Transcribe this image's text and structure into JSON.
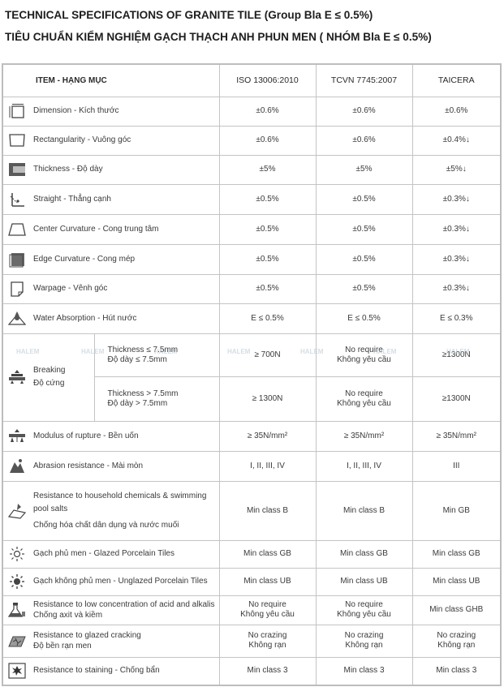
{
  "title_en": "TECHNICAL SPECIFICATIONS OF GRANITE TILE (Group Bla E ≤ 0.5%)",
  "title_vi": "TIÊU CHUẨN KIỂM NGHIỆM GẠCH THẠCH ANH PHUN MEN ( NHÓM Bla E ≤ 0.5%)",
  "header": {
    "item": "ITEM - HẠNG MỤC",
    "c1": "ISO 13006:2010",
    "c2": "TCVN  7745:2007",
    "c3": "TAICERA"
  },
  "rows": {
    "dimension": {
      "label": "Dimension - Kích thước",
      "icon": "dimension-icon",
      "v1": "±0.6%",
      "v2": "±0.6%",
      "v3": "±0.6%"
    },
    "rectangularity": {
      "label": "Rectangularity - Vuông góc",
      "icon": "rectangularity-icon",
      "v1": "±0.6%",
      "v2": "±0.6%",
      "v3": "±0.4%↓"
    },
    "thickness": {
      "label": "Thickness - Độ dày",
      "icon": "thickness-icon",
      "v1": "±5%",
      "v2": "±5%",
      "v3": "±5%↓"
    },
    "straight": {
      "label": "Straight - Thẳng cạnh",
      "icon": "straight-edge-icon",
      "v1": "±0.5%",
      "v2": "±0.5%",
      "v3": "±0.3%↓"
    },
    "center_curvature": {
      "label": "Center Curvature - Cong trung tâm",
      "icon": "center-curvature-icon",
      "v1": "±0.5%",
      "v2": "±0.5%",
      "v3": "±0.3%↓"
    },
    "edge_curvature": {
      "label": "Edge Curvature - Cong mép",
      "icon": "edge-curvature-icon",
      "v1": "±0.5%",
      "v2": "±0.5%",
      "v3": "±0.3%↓"
    },
    "warpage": {
      "label": "Warpage - Vênh góc",
      "icon": "warpage-icon",
      "v1": "±0.5%",
      "v2": "±0.5%",
      "v3": "±0.3%↓"
    },
    "water_absorption": {
      "label": "Water Absorption  - Hút nước",
      "icon": "water-drop-icon",
      "v1": "E ≤ 0.5%",
      "v2": "E ≤ 0.5%",
      "v3": "E ≤ 0.3%"
    },
    "breaking": {
      "label_en": "Breaking",
      "label_vi": "Độ cứng",
      "icon": "breaking-icon",
      "sub1_en": "Thickness  ≤  7.5mm",
      "sub1_vi": "Độ dày  ≤  7.5mm",
      "sub1_v1": "≥ 700N",
      "sub1_v2_en": "No require",
      "sub1_v2_vi": "Không yêu cầu",
      "sub1_v3": "≥1300N",
      "sub2_en": "Thickness  >  7.5mm",
      "sub2_vi": "Độ dày  >  7.5mm",
      "sub2_v1": "≥ 1300N",
      "sub2_v2_en": "No require",
      "sub2_v2_vi": "Không yêu cầu",
      "sub2_v3": "≥1300N"
    },
    "modulus": {
      "label": "Modulus of rupture - Bền uốn",
      "icon": "rupture-icon",
      "v1": "≥ 35N/mm²",
      "v2": "≥ 35N/mm²",
      "v3": "≥ 35N/mm²"
    },
    "abrasion": {
      "label": "Abrasion resistance - Mài mòn",
      "icon": "abrasion-icon",
      "v1": "I, II, III, IV",
      "v2": "I, II, III, IV",
      "v3": "III"
    },
    "chemicals": {
      "label_en": "Resistance to household chemicals & swimming pool salts",
      "label_vi": "Chống hóa chất dân dụng và nước muối",
      "icon": "chemical-icon",
      "v1": "Min class B",
      "v2": "Min class B",
      "v3": "Min GB"
    },
    "glazed": {
      "label": "Gạch phủ men - Glazed Porcelain Tiles",
      "icon": "glazed-tile-icon",
      "v1": "Min class GB",
      "v2": "Min class GB",
      "v3": "Min class GB"
    },
    "unglazed": {
      "label": "Gạch không phủ men - Unglazed Porcelain Tiles",
      "icon": "unglazed-tile-icon",
      "v1": "Min class UB",
      "v2": "Min class UB",
      "v3": "Min class UB"
    },
    "acid": {
      "label_en": "Resistance to low concentration of acid and alkalis",
      "label_vi": "Chống axit và kiềm",
      "icon": "acid-icon",
      "v1_en": "No require",
      "v1_vi": "Không yêu cầu",
      "v2_en": "No require",
      "v2_vi": "Không yêu cầu",
      "v3": "Min class GHB"
    },
    "crazing": {
      "label_en": "Resistance to glazed cracking",
      "label_vi": "Độ bền rạn men",
      "icon": "crazing-icon",
      "v1_en": "No crazing",
      "v1_vi": "Không rạn",
      "v2_en": "No crazing",
      "v2_vi": "Không rạn",
      "v3_en": "No crazing",
      "v3_vi": "Không rạn"
    },
    "staining": {
      "label": "Resistance to staining - Chống bẩn",
      "icon": "staining-icon",
      "v1": "Min class 3",
      "v2": "Min class 3",
      "v3": "Min class 3"
    }
  },
  "watermark": "HALEM"
}
